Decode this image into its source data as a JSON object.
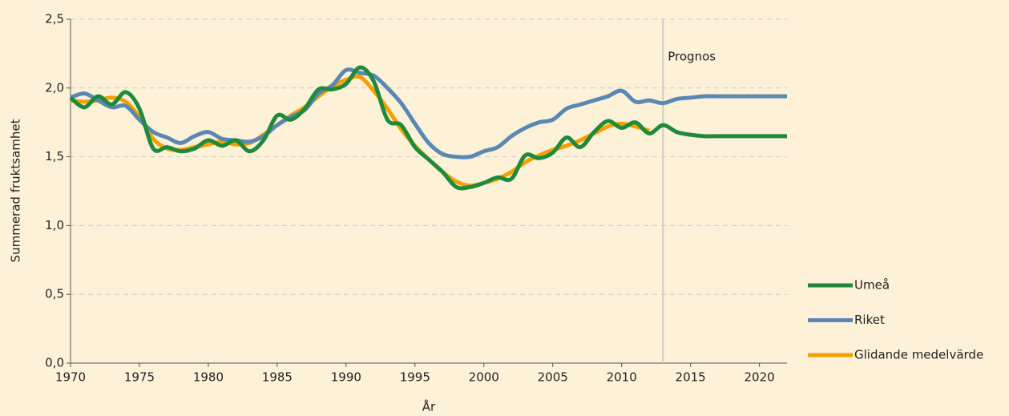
{
  "chart_data": {
    "type": "line",
    "y_axis_label": "Summerad fruktsamhet",
    "x_axis_label": "År",
    "x": [
      1970,
      1971,
      1972,
      1973,
      1974,
      1975,
      1976,
      1977,
      1978,
      1979,
      1980,
      1981,
      1982,
      1983,
      1984,
      1985,
      1986,
      1987,
      1988,
      1989,
      1990,
      1991,
      1992,
      1993,
      1994,
      1995,
      1996,
      1997,
      1998,
      1999,
      2000,
      2001,
      2002,
      2003,
      2004,
      2005,
      2006,
      2007,
      2008,
      2009,
      2010,
      2011,
      2012,
      2013,
      2014,
      2015,
      2016,
      2017,
      2018,
      2019,
      2020,
      2021,
      2022
    ],
    "series": [
      {
        "name": "Umeå",
        "color": "#1f8a3b",
        "values": [
          1.93,
          1.86,
          1.94,
          1.88,
          1.97,
          1.85,
          1.56,
          1.57,
          1.54,
          1.56,
          1.62,
          1.58,
          1.62,
          1.54,
          1.62,
          1.8,
          1.77,
          1.85,
          1.99,
          1.99,
          2.03,
          2.15,
          2.05,
          1.77,
          1.73,
          1.57,
          1.48,
          1.39,
          1.28,
          1.28,
          1.31,
          1.35,
          1.34,
          1.51,
          1.49,
          1.53,
          1.64,
          1.57,
          1.68,
          1.76,
          1.71,
          1.75,
          1.67,
          1.73,
          1.68,
          1.66,
          1.65,
          1.65,
          1.65,
          1.65,
          1.65,
          1.65,
          1.65
        ]
      },
      {
        "name": "Riket",
        "color": "#5b87b5",
        "values": [
          1.93,
          1.96,
          1.91,
          1.86,
          1.87,
          1.77,
          1.68,
          1.64,
          1.6,
          1.65,
          1.68,
          1.63,
          1.62,
          1.61,
          1.65,
          1.73,
          1.79,
          1.84,
          1.96,
          2.02,
          2.13,
          2.11,
          2.09,
          2.0,
          1.89,
          1.74,
          1.6,
          1.52,
          1.5,
          1.5,
          1.54,
          1.57,
          1.65,
          1.71,
          1.75,
          1.77,
          1.85,
          1.88,
          1.91,
          1.94,
          1.98,
          1.9,
          1.91,
          1.89,
          1.92,
          1.93,
          1.94,
          1.94,
          1.94,
          1.94,
          1.94,
          1.94,
          1.94
        ]
      },
      {
        "name": "Glidande medelvärde",
        "color": "#f5a000",
        "values": [
          1.91,
          1.9,
          1.91,
          1.93,
          1.9,
          1.79,
          1.63,
          1.56,
          1.55,
          1.57,
          1.59,
          1.61,
          1.59,
          1.6,
          1.66,
          1.73,
          1.8,
          1.86,
          1.94,
          2.01,
          2.06,
          2.08,
          1.98,
          1.85,
          1.7,
          1.58,
          1.48,
          1.39,
          1.32,
          1.29,
          1.31,
          1.34,
          1.39,
          1.46,
          1.51,
          1.55,
          1.58,
          1.62,
          1.67,
          1.72,
          1.74,
          1.72,
          1.69,
          null,
          null,
          null,
          null,
          null,
          null,
          null,
          null,
          null,
          null
        ]
      }
    ],
    "xlim": [
      1970,
      2022
    ],
    "xticks": [
      1970,
      1975,
      1980,
      1985,
      1990,
      1995,
      2000,
      2005,
      2010,
      2015,
      2020
    ],
    "ylim": [
      0,
      2.5
    ],
    "yticks": [
      {
        "value": 0,
        "label": "0,0"
      },
      {
        "value": 0.5,
        "label": "0,5"
      },
      {
        "value": 1,
        "label": "1,0"
      },
      {
        "value": 1.5,
        "label": "1,5"
      },
      {
        "value": 2,
        "label": "2,0"
      },
      {
        "value": 2.5,
        "label": "2,5"
      }
    ],
    "grid": true,
    "legend": "right",
    "annotations": [
      {
        "text": "Prognos",
        "x": 2013
      }
    ]
  }
}
